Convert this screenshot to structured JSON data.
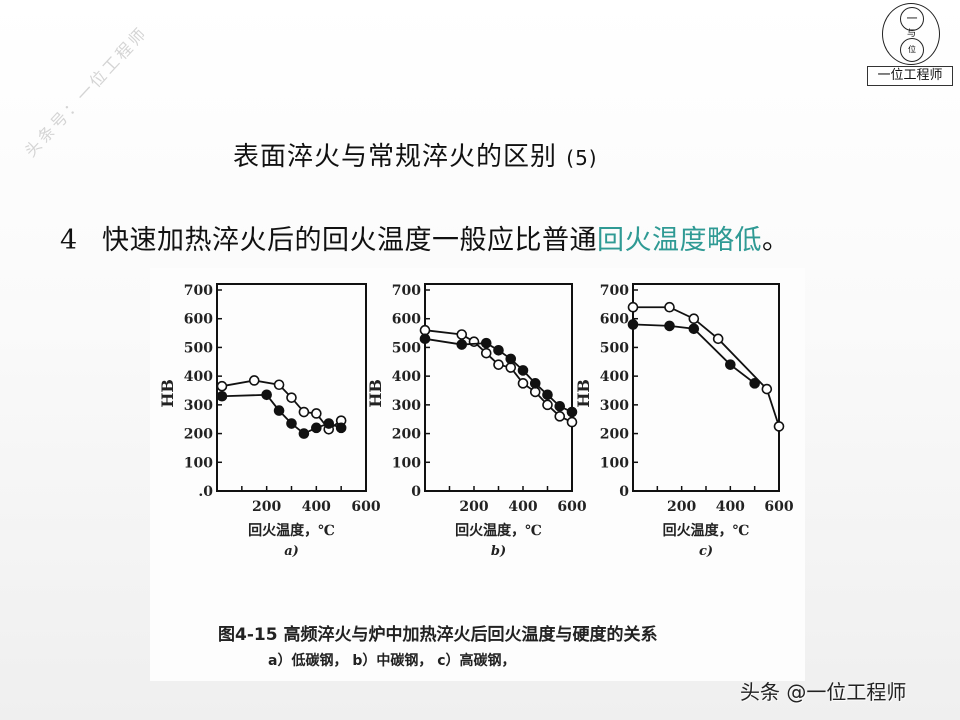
{
  "watermark": {
    "text": "头条号：一位工程师"
  },
  "logo": {
    "top_char": "一",
    "middle_char": "与",
    "bottom_char": "位",
    "label": "一位工程师"
  },
  "slide": {
    "title": "表面淬火与常规淬火的区别",
    "title_suffix": "(5)",
    "point_number": "4",
    "point_text_plain": "快速加热淬火后的回火温度一般应比普通",
    "point_text_highlight": "回火温度略低",
    "point_text_end": "。",
    "highlight_color": "#2f9a94"
  },
  "figure": {
    "caption_label": "图4-15",
    "caption_title": "高频淬火与炉中加热淬火后回火温度与硬度的关系",
    "caption_sub": "a）低碳钢，   b）中碳钢，   c）高碳钢，"
  },
  "footer": {
    "text": "头条 @一位工程师"
  },
  "chart_data": [
    {
      "type": "line",
      "panel": "a)",
      "subtitle": "低碳钢",
      "xlabel": "回火温度，℃",
      "ylabel": "HB",
      "xlim": [
        0,
        600
      ],
      "ylim": [
        0,
        700
      ],
      "xticks": [
        "200",
        "400",
        "600"
      ],
      "yticks": [
        ".0",
        "100",
        "200",
        "300",
        "400",
        "500",
        "600",
        "700"
      ],
      "series": [
        {
          "name": "open circles",
          "marker": "open",
          "x": [
            20,
            150,
            250,
            300,
            350,
            400,
            450,
            500
          ],
          "y": [
            365,
            385,
            370,
            325,
            275,
            270,
            215,
            245
          ]
        },
        {
          "name": "filled circles",
          "marker": "filled",
          "x": [
            20,
            200,
            250,
            300,
            350,
            400,
            450,
            500
          ],
          "y": [
            330,
            335,
            280,
            235,
            200,
            220,
            235,
            220
          ]
        }
      ]
    },
    {
      "type": "line",
      "panel": "b)",
      "subtitle": "中碳钢",
      "xlabel": "回火温度，℃",
      "ylabel": "HB",
      "xlim": [
        0,
        600
      ],
      "ylim": [
        0,
        700
      ],
      "xticks": [
        "200",
        "400",
        "600"
      ],
      "yticks": [
        "0",
        "100",
        "200",
        "300",
        "400",
        "500",
        "600",
        "700"
      ],
      "series": [
        {
          "name": "open circles",
          "marker": "open",
          "x": [
            0,
            150,
            200,
            250,
            300,
            350,
            400,
            450,
            500,
            550,
            600
          ],
          "y": [
            560,
            545,
            520,
            480,
            440,
            430,
            375,
            345,
            300,
            260,
            240
          ]
        },
        {
          "name": "filled circles",
          "marker": "filled",
          "x": [
            0,
            150,
            250,
            300,
            350,
            400,
            450,
            500,
            550,
            600
          ],
          "y": [
            530,
            510,
            515,
            490,
            460,
            420,
            375,
            335,
            295,
            275
          ]
        }
      ]
    },
    {
      "type": "line",
      "panel": "c)",
      "subtitle": "高碳钢",
      "xlabel": "回火温度，℃",
      "ylabel": "HB",
      "xlim": [
        0,
        600
      ],
      "ylim": [
        0,
        700
      ],
      "xticks": [
        "200",
        "400",
        "600"
      ],
      "yticks": [
        "0",
        "100",
        "200",
        "300",
        "400",
        "500",
        "600",
        "700"
      ],
      "series": [
        {
          "name": "open circles",
          "marker": "open",
          "x": [
            0,
            150,
            250,
            350,
            550,
            600
          ],
          "y": [
            640,
            640,
            600,
            530,
            355,
            225
          ]
        },
        {
          "name": "filled circles",
          "marker": "filled",
          "x": [
            0,
            150,
            250,
            400,
            500
          ],
          "y": [
            580,
            575,
            565,
            440,
            375
          ]
        }
      ]
    }
  ]
}
